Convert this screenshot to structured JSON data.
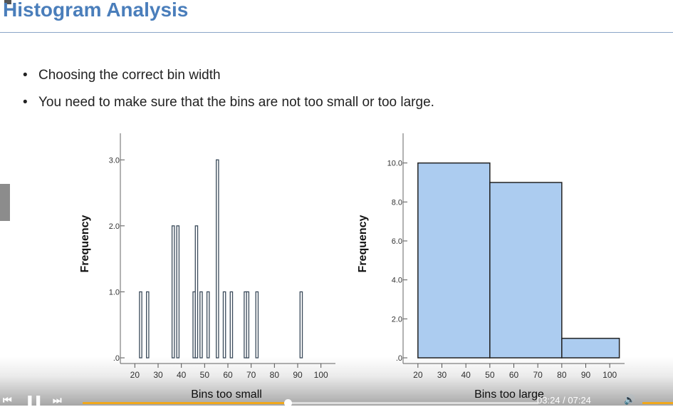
{
  "slide": {
    "title": "Histogram Analysis",
    "bullets": [
      "Choosing the correct bin width",
      "You need to make sure that the bins are not too small or too large."
    ]
  },
  "chart_data": [
    {
      "type": "bar",
      "xlabel": "Bins too small",
      "ylabel": "Frequency",
      "xlim": [
        15,
        105
      ],
      "ylim": [
        0,
        3.1
      ],
      "x_ticks": [
        20,
        30,
        40,
        50,
        60,
        70,
        80,
        90,
        100
      ],
      "x_tick_labels": [
        "20",
        "30",
        "40",
        "50",
        "60",
        "70",
        "80",
        "90",
        "100"
      ],
      "y_ticks": [
        0,
        1,
        2,
        3
      ],
      "y_tick_labels": [
        ".0",
        "1.0",
        "2.0",
        "3.0"
      ],
      "bar_width": 1,
      "bars": [
        {
          "x": 22.5,
          "y": 1
        },
        {
          "x": 25.5,
          "y": 1
        },
        {
          "x": 36.5,
          "y": 2
        },
        {
          "x": 38.5,
          "y": 2
        },
        {
          "x": 45.5,
          "y": 1
        },
        {
          "x": 46.5,
          "y": 2
        },
        {
          "x": 48.5,
          "y": 1
        },
        {
          "x": 51.5,
          "y": 1
        },
        {
          "x": 55.5,
          "y": 3
        },
        {
          "x": 58.5,
          "y": 1
        },
        {
          "x": 61.5,
          "y": 1
        },
        {
          "x": 67.5,
          "y": 1
        },
        {
          "x": 68.5,
          "y": 1
        },
        {
          "x": 72.5,
          "y": 1
        },
        {
          "x": 91.5,
          "y": 1
        }
      ],
      "bar_color": "#ffffff",
      "grid": false
    },
    {
      "type": "bar",
      "xlabel": "Bins too large",
      "ylabel": "Frequency",
      "xlim": [
        15,
        105
      ],
      "ylim": [
        0,
        10.5
      ],
      "x_ticks": [
        20,
        30,
        40,
        50,
        60,
        70,
        80,
        90,
        100
      ],
      "x_tick_labels": [
        "20",
        "30",
        "40",
        "50",
        "60",
        "70",
        "80",
        "90",
        "100"
      ],
      "y_ticks": [
        0,
        2,
        4,
        6,
        8,
        10
      ],
      "y_tick_labels": [
        ".0",
        "2.0",
        "4.0",
        "6.0",
        "8.0",
        "10.0"
      ],
      "bins": [
        {
          "start": 20,
          "end": 50,
          "y": 10
        },
        {
          "start": 50,
          "end": 80,
          "y": 9
        },
        {
          "start": 80,
          "end": 104,
          "y": 1
        }
      ],
      "bar_color": "#acccf0",
      "grid": false
    }
  ],
  "player": {
    "time": "03:24 / 07:24",
    "progress": 0.45,
    "accent": "#f0a81c"
  }
}
